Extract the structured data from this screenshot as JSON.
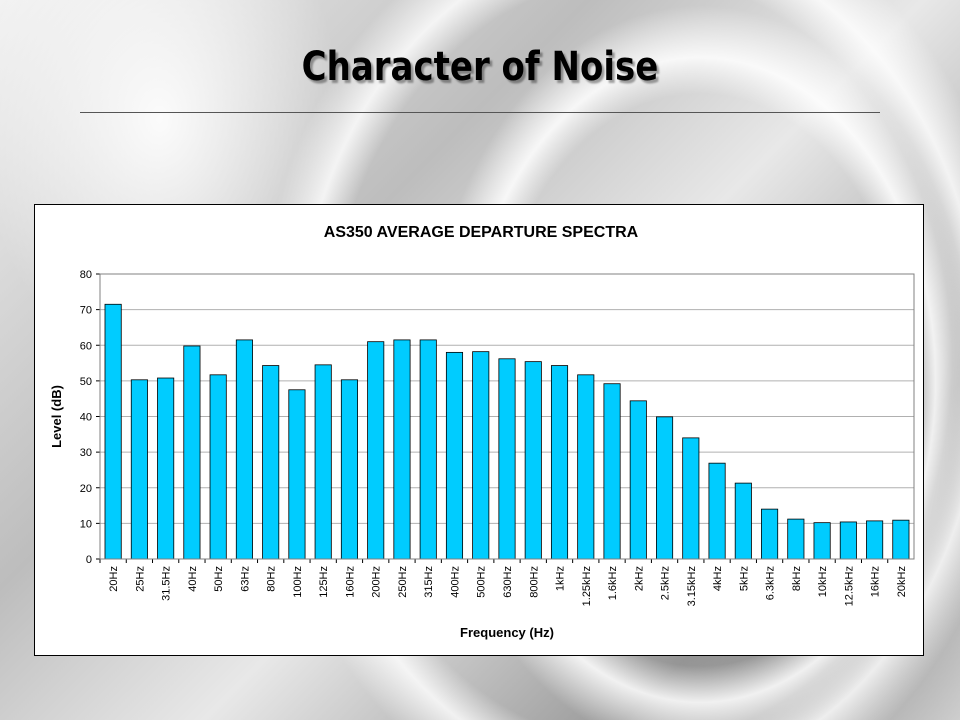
{
  "slide": {
    "title": "Character of Noise"
  },
  "chart_data": {
    "type": "bar",
    "title": "AS350 AVERAGE DEPARTURE SPECTRA",
    "xlabel": "Frequency (Hz)",
    "ylabel": "Level (dB)",
    "ylim": [
      0,
      80
    ],
    "yticks": [
      0,
      10,
      20,
      30,
      40,
      50,
      60,
      70,
      80
    ],
    "grid": true,
    "bar_color": "#00ccff",
    "categories": [
      "20Hz",
      "25Hz",
      "31.5Hz",
      "40Hz",
      "50Hz",
      "63Hz",
      "80Hz",
      "100Hz",
      "125Hz",
      "160Hz",
      "200Hz",
      "250Hz",
      "315Hz",
      "400Hz",
      "500Hz",
      "630Hz",
      "800Hz",
      "1kHz",
      "1.25kHz",
      "1.6kHz",
      "2kHz",
      "2.5kHz",
      "3.15kHz",
      "4kHz",
      "5kHz",
      "6.3kHz",
      "8kHz",
      "10kHz",
      "12.5kHz",
      "16kHz",
      "20kHz"
    ],
    "values": [
      71.5,
      50.3,
      50.8,
      59.8,
      51.7,
      61.5,
      54.3,
      47.5,
      54.5,
      50.3,
      61.0,
      61.5,
      61.5,
      58.0,
      58.2,
      56.2,
      55.4,
      54.3,
      51.7,
      49.2,
      44.4,
      39.9,
      34.0,
      26.9,
      21.3,
      14.0,
      11.2,
      10.2,
      10.4,
      10.7,
      10.9
    ]
  }
}
